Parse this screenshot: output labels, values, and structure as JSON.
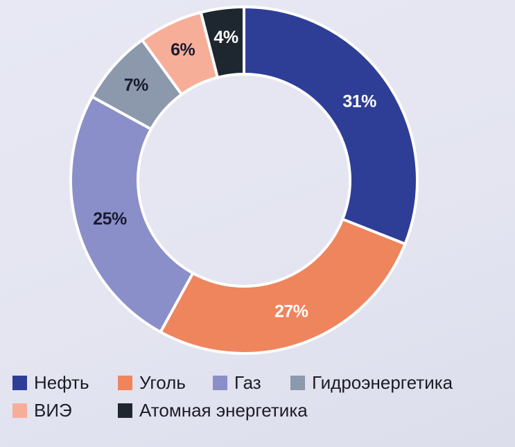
{
  "chart_data": {
    "type": "pie",
    "style": "donut",
    "title": "",
    "slices": [
      {
        "label": "Нефть",
        "value": 31,
        "display": "31%",
        "color": "#2e3e97",
        "label_color": "#ffffff"
      },
      {
        "label": "Уголь",
        "value": 27,
        "display": "27%",
        "color": "#ef855d",
        "label_color": "#ffffff"
      },
      {
        "label": "Газ",
        "value": 25,
        "display": "25%",
        "color": "#8a8fc9",
        "label_color": "#1a1a2e"
      },
      {
        "label": "Гидроэнергетика",
        "value": 7,
        "display": "7%",
        "color": "#8c98ac",
        "label_color": "#1a1a2e"
      },
      {
        "label": "ВИЭ",
        "value": 6,
        "display": "6%",
        "color": "#f7ae98",
        "label_color": "#1a1a2e"
      },
      {
        "label": "Атомная энергетика",
        "value": 4,
        "display": "4%",
        "color": "#1e2730",
        "label_color": "#ffffff"
      }
    ],
    "legend_position": "bottom"
  },
  "legend_rows": [
    [
      0,
      1,
      2,
      3
    ],
    [
      4,
      5
    ]
  ]
}
